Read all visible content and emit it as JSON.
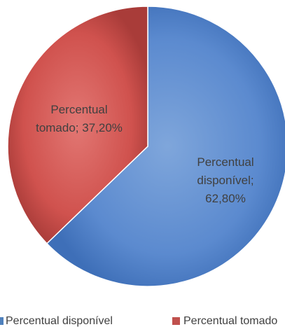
{
  "chart_data": {
    "type": "pie",
    "slices": [
      {
        "name": "Percentual disponível",
        "value": 62.8,
        "label_lines": [
          "Percentual",
          "disponível;",
          "62,80%"
        ],
        "color": "#4F81BD"
      },
      {
        "name": "Percentual tomado",
        "value": 37.2,
        "label_lines": [
          "Percentual",
          "tomado; 37,20%"
        ],
        "color": "#C0504D"
      }
    ],
    "legend": {
      "placement": "bottom",
      "items": [
        {
          "label": "Percentual disponível",
          "color": "#4F81BD"
        },
        {
          "label": "Percentual tomado",
          "color": "#C0504D"
        }
      ]
    }
  }
}
